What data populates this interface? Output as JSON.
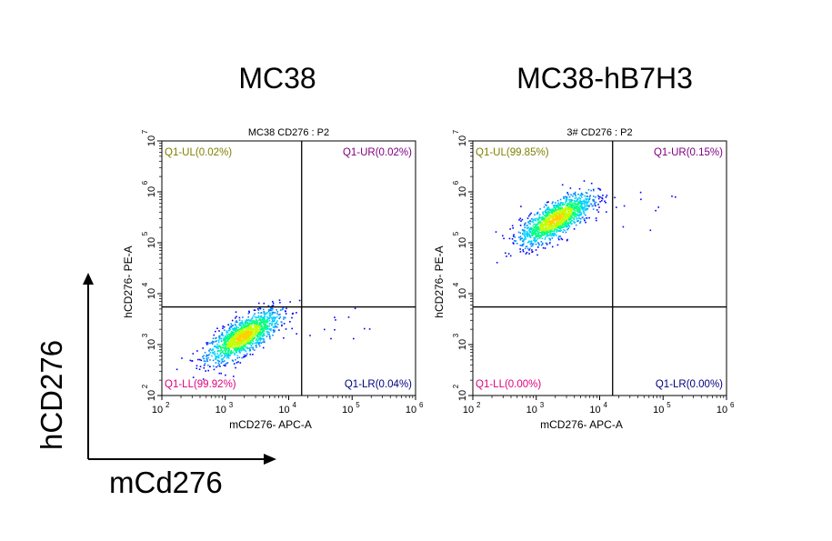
{
  "panel_titles": [
    "MC38",
    "MC38-hB7H3"
  ],
  "overall_axes": {
    "y_label": "hCD276",
    "x_label": "mCd276"
  },
  "chart_data": [
    {
      "type": "scatter",
      "title": "MC38 CD276 : P2",
      "xlabel": "mCD276- APC-A",
      "ylabel": "hCD276- PE-A",
      "xscale": "log",
      "yscale": "log",
      "xlim": [
        100,
        1000000
      ],
      "ylim": [
        100,
        10000000
      ],
      "x_ticks": [
        100,
        1000,
        10000,
        100000,
        1000000
      ],
      "y_ticks": [
        100,
        1000,
        10000,
        100000,
        1000000,
        10000000
      ],
      "tick_exponents_x": [
        "2",
        "3",
        "4",
        "5",
        "6"
      ],
      "tick_exponents_y": [
        "2",
        "3",
        "4",
        "5",
        "6",
        "7"
      ],
      "gate": {
        "x": 16000,
        "y": 5500
      },
      "quadrants": [
        {
          "id": "UL",
          "label": "Q1-UL(0.02%)",
          "color": "#808000"
        },
        {
          "id": "UR",
          "label": "Q1-UR(0.02%)",
          "color": "#800080"
        },
        {
          "id": "LL",
          "label": "Q1-LL(99.92%)",
          "color": "#e0007f"
        },
        {
          "id": "LR",
          "label": "Q1-LR(0.04%)",
          "color": "#000080"
        }
      ],
      "population": {
        "center_x": 1900,
        "center_y": 1500,
        "spread": "elliptical, density colored"
      }
    },
    {
      "type": "scatter",
      "title": "3# CD276 : P2",
      "xlabel": "mCD276- APC-A",
      "ylabel": "hCD276- PE-A",
      "xscale": "log",
      "yscale": "log",
      "xlim": [
        100,
        1000000
      ],
      "ylim": [
        100,
        10000000
      ],
      "x_ticks": [
        100,
        1000,
        10000,
        100000,
        1000000
      ],
      "y_ticks": [
        100,
        1000,
        10000,
        100000,
        1000000,
        10000000
      ],
      "tick_exponents_x": [
        "2",
        "3",
        "4",
        "5",
        "6"
      ],
      "tick_exponents_y": [
        "2",
        "3",
        "4",
        "5",
        "6",
        "7"
      ],
      "gate": {
        "x": 16000,
        "y": 5500
      },
      "quadrants": [
        {
          "id": "UL",
          "label": "Q1-UL(99.85%)",
          "color": "#808000"
        },
        {
          "id": "UR",
          "label": "Q1-UR(0.15%)",
          "color": "#800080"
        },
        {
          "id": "LL",
          "label": "Q1-LL(0.00%)",
          "color": "#e0007f"
        },
        {
          "id": "LR",
          "label": "Q1-LR(0.00%)",
          "color": "#000080"
        }
      ],
      "population": {
        "center_x": 2000,
        "center_y": 300000,
        "spread": "elliptical, density colored"
      }
    }
  ]
}
